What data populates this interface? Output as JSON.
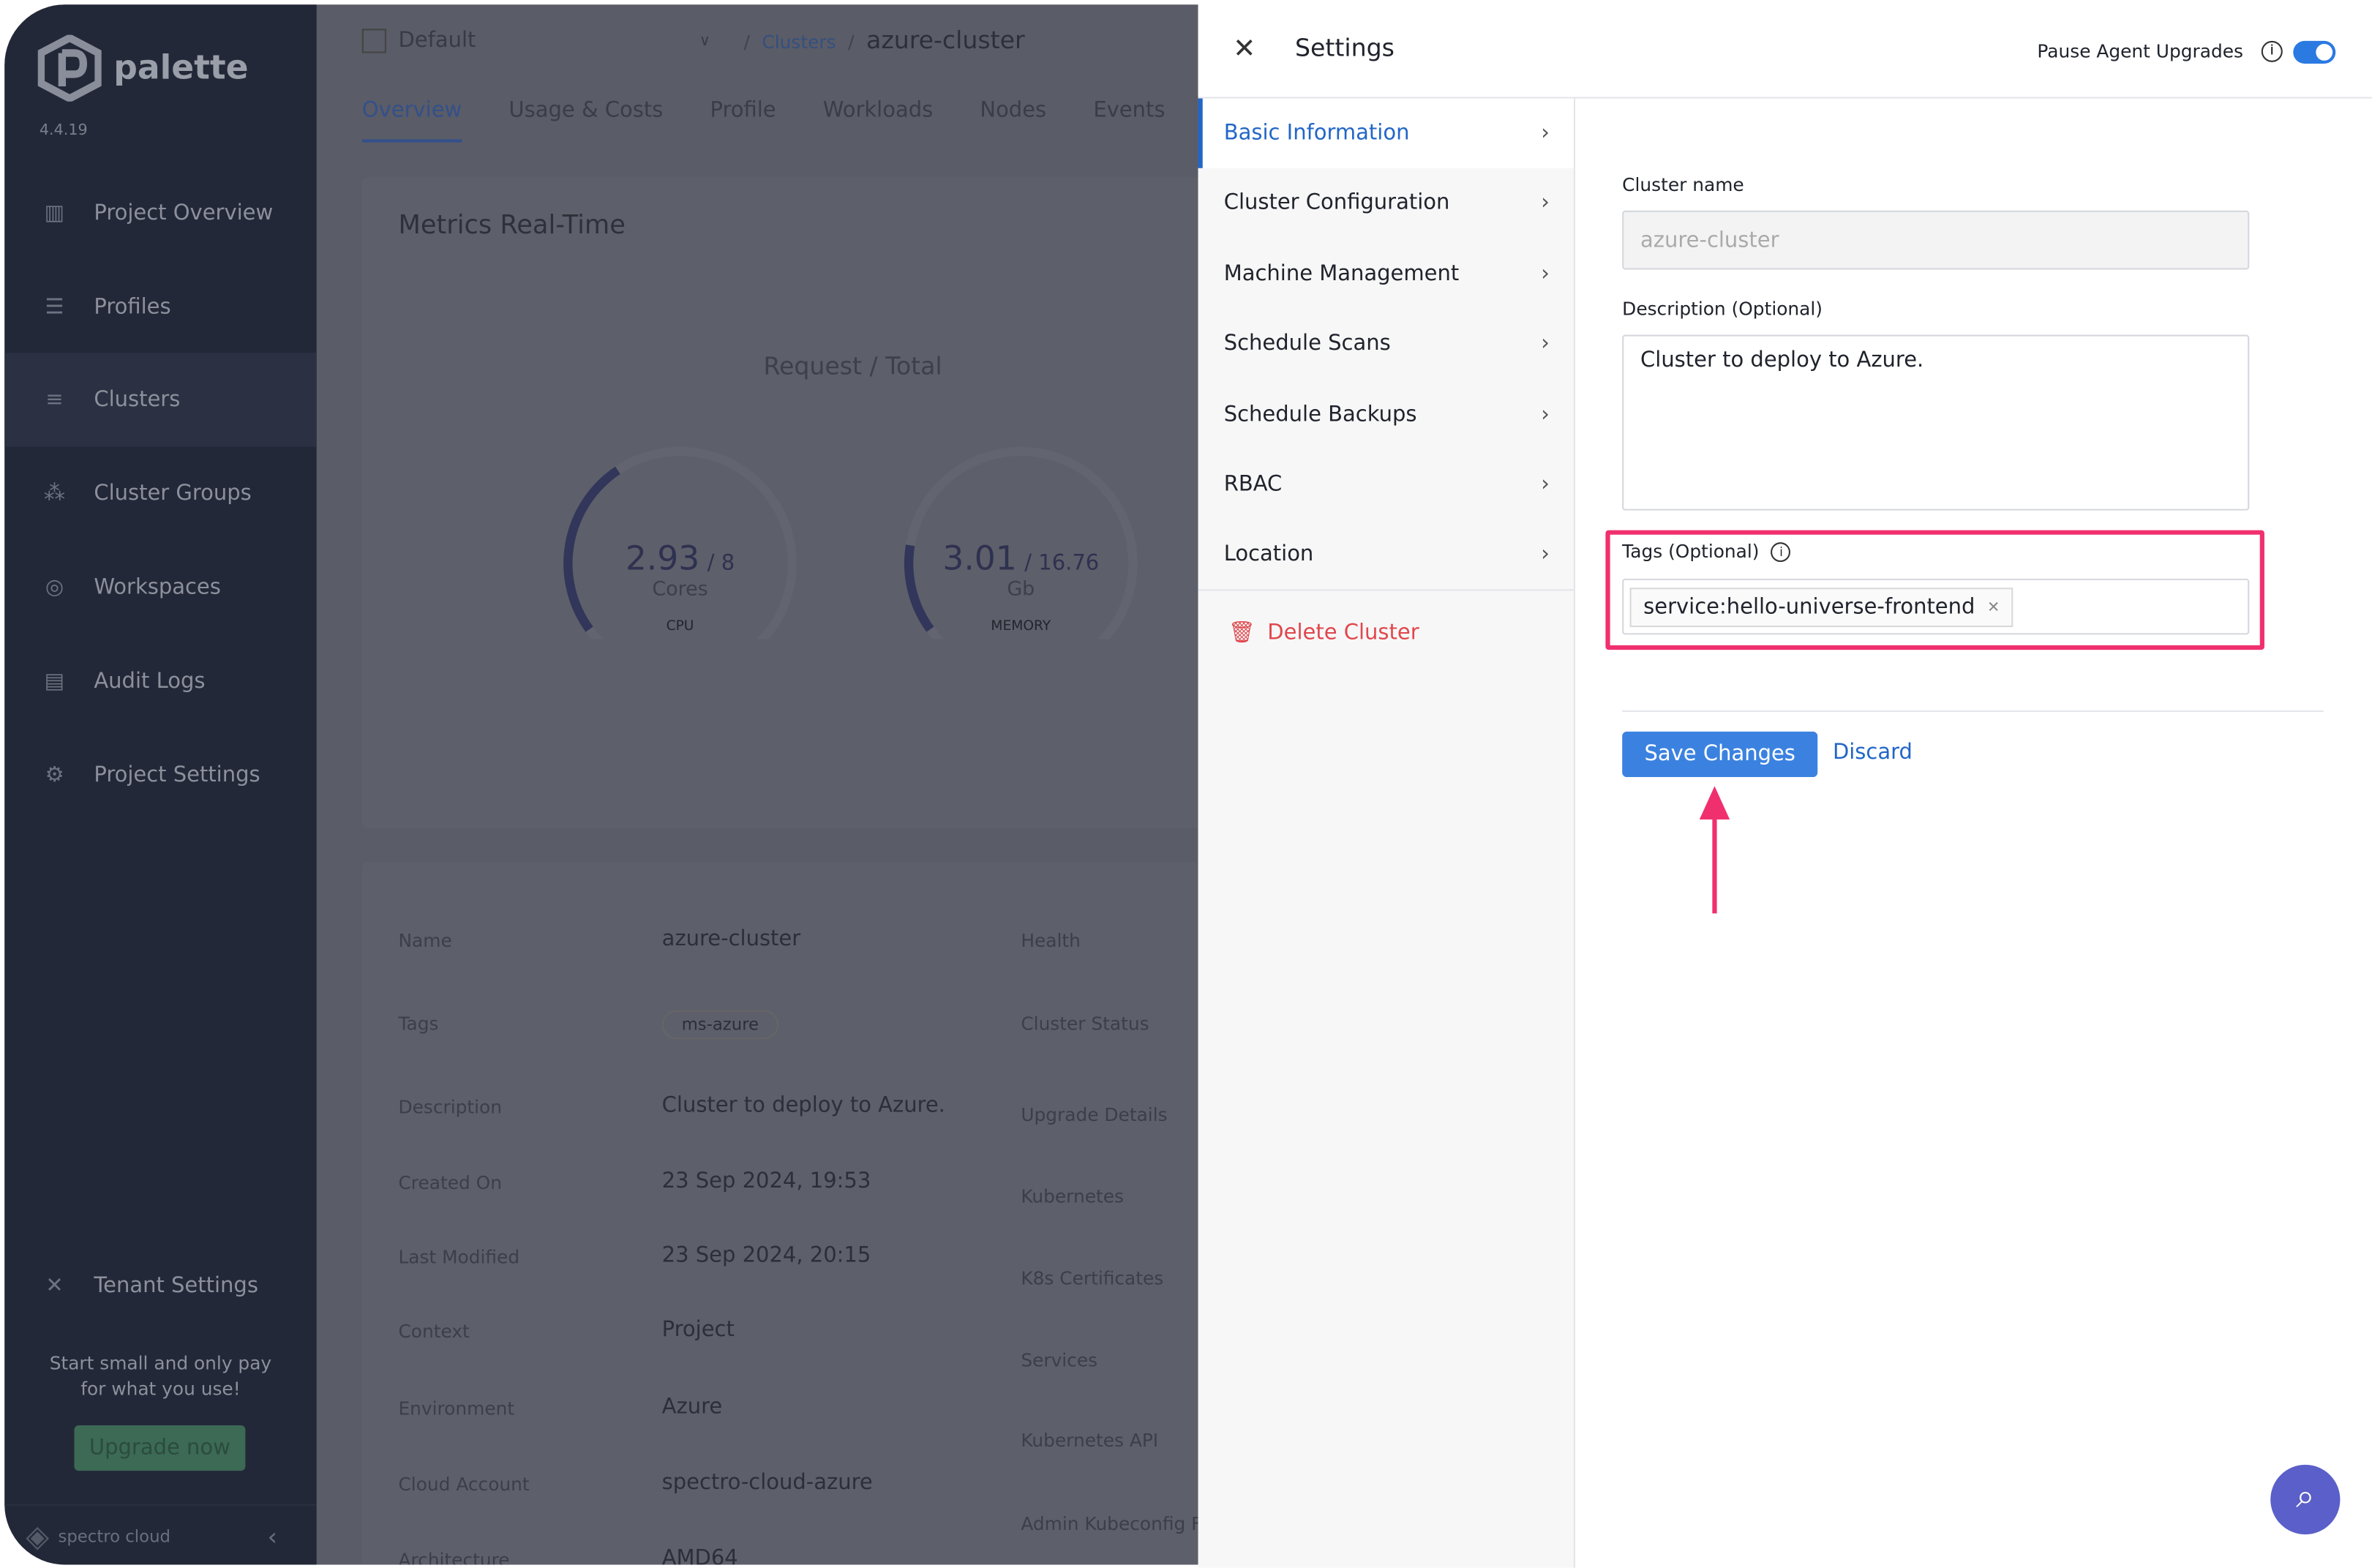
{
  "sidebar": {
    "brand": "palette",
    "version": "4.4.19",
    "items": [
      {
        "label": "Project Overview",
        "icon": "chart-icon"
      },
      {
        "label": "Profiles",
        "icon": "stack-icon"
      },
      {
        "label": "Clusters",
        "icon": "clusters-icon"
      },
      {
        "label": "Cluster Groups",
        "icon": "network-icon"
      },
      {
        "label": "Workspaces",
        "icon": "workspaces-icon"
      },
      {
        "label": "Audit Logs",
        "icon": "audit-icon"
      },
      {
        "label": "Project Settings",
        "icon": "gear-icon"
      }
    ],
    "tenant_settings": "Tenant Settings",
    "promo_line1": "Start small and only pay",
    "promo_line2": "for what you use!",
    "upgrade": "Upgrade now",
    "footer_brand": "spectro cloud"
  },
  "header": {
    "project": "Default",
    "breadcrumb_parent": "Clusters",
    "breadcrumb_current": "azure-cluster"
  },
  "tabs": [
    "Overview",
    "Usage & Costs",
    "Profile",
    "Workloads",
    "Nodes",
    "Events"
  ],
  "metrics": {
    "title": "Metrics Real-Time",
    "subtitle": "Request / Total",
    "cpu": {
      "value": "2.93",
      "total": "/ 8",
      "unit": "Cores",
      "label": "CPU",
      "fraction": 0.366
    },
    "memory": {
      "value": "3.01",
      "total": "/ 16.76",
      "unit": "Gb",
      "label": "MEMORY",
      "fraction": 0.18
    }
  },
  "details": [
    {
      "label": "Name",
      "value": "azure-cluster"
    },
    {
      "label": "Tags",
      "value": "ms-azure"
    },
    {
      "label": "Description",
      "value": "Cluster to deploy to Azure."
    },
    {
      "label": "Created On",
      "value": "23 Sep 2024, 19:53"
    },
    {
      "label": "Last Modified",
      "value": "23 Sep 2024, 20:15"
    },
    {
      "label": "Context",
      "value": "Project"
    },
    {
      "label": "Environment",
      "value": "Azure"
    },
    {
      "label": "Cloud Account",
      "value": "spectro-cloud-azure"
    },
    {
      "label": "Architecture",
      "value": "AMD64"
    }
  ],
  "details_right": [
    "Health",
    "Cluster Status",
    "Upgrade Details",
    "Kubernetes",
    "K8s Certificates",
    "Services",
    "Kubernetes API",
    "Admin Kubeconfig F"
  ],
  "drawer": {
    "title": "Settings",
    "pause_label": "Pause Agent Upgrades",
    "pause_on": true,
    "nav": [
      "Basic Information",
      "Cluster Configuration",
      "Machine Management",
      "Schedule Scans",
      "Schedule Backups",
      "RBAC",
      "Location"
    ],
    "delete": "Delete Cluster",
    "form": {
      "name_label": "Cluster name",
      "name_value": "azure-cluster",
      "desc_label": "Description (Optional)",
      "desc_value": "Cluster to deploy to Azure.",
      "tags_label": "Tags (Optional)",
      "tag": "service:hello-universe-frontend",
      "save": "Save Changes",
      "discard": "Discard"
    },
    "highlight_color": "#f0306e",
    "accent": "#2266c7"
  }
}
